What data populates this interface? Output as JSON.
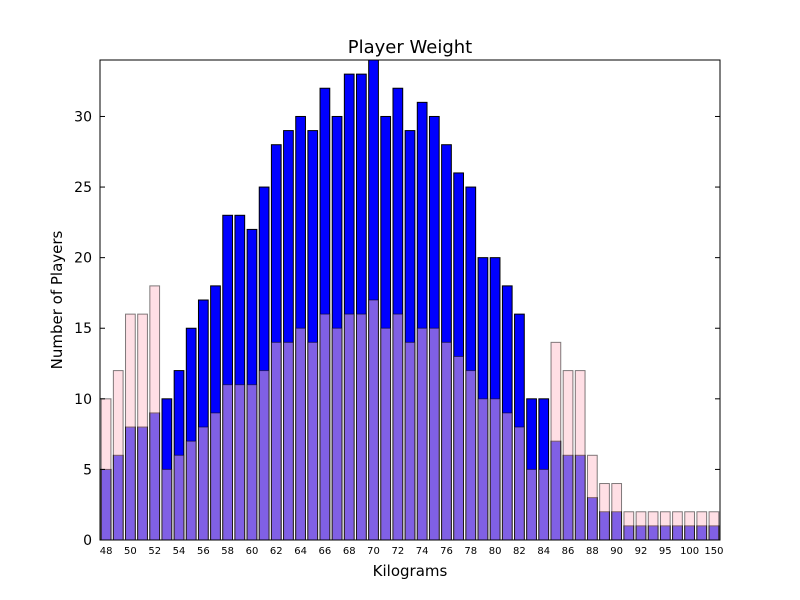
{
  "chart_data": {
    "type": "bar",
    "title": "Player Weight",
    "xlabel": "Kilograms",
    "ylabel": "Number of Players",
    "ylim": [
      0,
      34
    ],
    "y_ticks": [
      0,
      5,
      10,
      15,
      20,
      25,
      30
    ],
    "categories": [
      "48",
      "49",
      "50",
      "51",
      "52",
      "53",
      "54",
      "55",
      "56",
      "57",
      "58",
      "59",
      "60",
      "61",
      "62",
      "63",
      "64",
      "65",
      "66",
      "67",
      "68",
      "69",
      "70",
      "71",
      "72",
      "73",
      "74",
      "75",
      "76",
      "77",
      "78",
      "79",
      "80",
      "81",
      "82",
      "83",
      "84",
      "85",
      "86",
      "87",
      "88",
      "89",
      "90",
      "91",
      "92",
      "93",
      "95",
      "96",
      "100",
      "110",
      "150"
    ],
    "x_tick_labels": [
      "48",
      "50",
      "52",
      "54",
      "56",
      "58",
      "60",
      "62",
      "64",
      "66",
      "68",
      "70",
      "72",
      "74",
      "76",
      "78",
      "80",
      "82",
      "84",
      "86",
      "88",
      "90",
      "92",
      "95",
      "100",
      "150"
    ],
    "series": [
      {
        "color": "#0000ff",
        "values": [
          5,
          6,
          8,
          8,
          9,
          10,
          12,
          15,
          17,
          18,
          23,
          23,
          22,
          25,
          28,
          29,
          30,
          29,
          32,
          30,
          33,
          33,
          34,
          30,
          32,
          29,
          31,
          30,
          28,
          26,
          25,
          20,
          20,
          18,
          16,
          10,
          10,
          7,
          6,
          6,
          3,
          2,
          2,
          1,
          1,
          1,
          1,
          1,
          1,
          1,
          1
        ]
      },
      {
        "color": "#ffc0cb",
        "values": [
          10,
          12,
          16,
          16,
          18,
          5,
          6,
          7,
          8,
          9,
          11,
          11,
          11,
          12,
          14,
          14,
          15,
          14,
          16,
          15,
          16,
          16,
          17,
          15,
          16,
          14,
          15,
          15,
          14,
          13,
          12,
          10,
          10,
          9,
          8,
          5,
          5,
          14,
          12,
          12,
          6,
          4,
          4,
          2,
          2,
          2,
          2,
          2,
          2,
          2,
          2
        ]
      }
    ],
    "grid": false,
    "legend": "none"
  }
}
